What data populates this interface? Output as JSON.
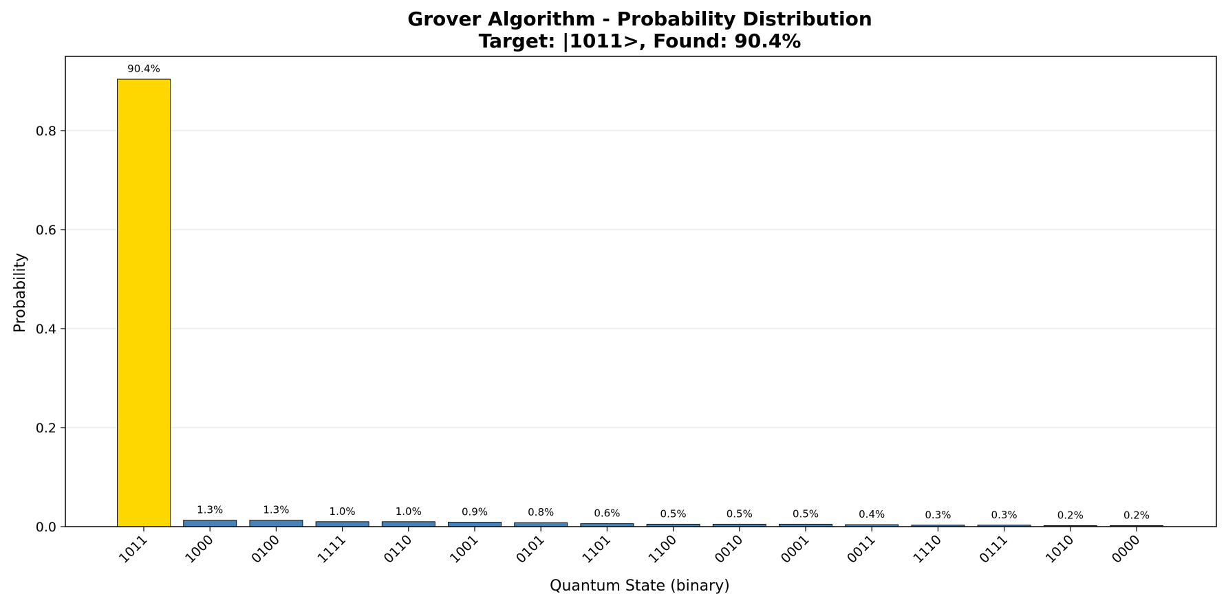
{
  "chart_data": {
    "type": "bar",
    "title": "Grover Algorithm - Probability Distribution",
    "subtitle": "Target: |1011>, Found: 90.4%",
    "xlabel": "Quantum State (binary)",
    "ylabel": "Probability",
    "ylim": [
      0,
      0.95
    ],
    "yticks": [
      "0.0",
      "0.2",
      "0.4",
      "0.6",
      "0.8"
    ],
    "grid": true,
    "categories": [
      "1011",
      "1000",
      "0100",
      "1111",
      "0110",
      "1001",
      "0101",
      "1101",
      "1100",
      "0010",
      "0001",
      "0011",
      "1110",
      "0111",
      "1010",
      "0000"
    ],
    "values": [
      0.904,
      0.013,
      0.013,
      0.01,
      0.01,
      0.009,
      0.008,
      0.006,
      0.005,
      0.005,
      0.005,
      0.004,
      0.003,
      0.003,
      0.002,
      0.002
    ],
    "data_labels": [
      "90.4%",
      "1.3%",
      "1.3%",
      "1.0%",
      "1.0%",
      "0.9%",
      "0.8%",
      "0.6%",
      "0.5%",
      "0.5%",
      "0.5%",
      "0.4%",
      "0.3%",
      "0.3%",
      "0.2%",
      "0.2%"
    ],
    "target_state": "1011",
    "colors": {
      "target": "#FFD700",
      "other": "#4682B4",
      "edge": "#000000",
      "grid": "#e6e6e6"
    }
  }
}
